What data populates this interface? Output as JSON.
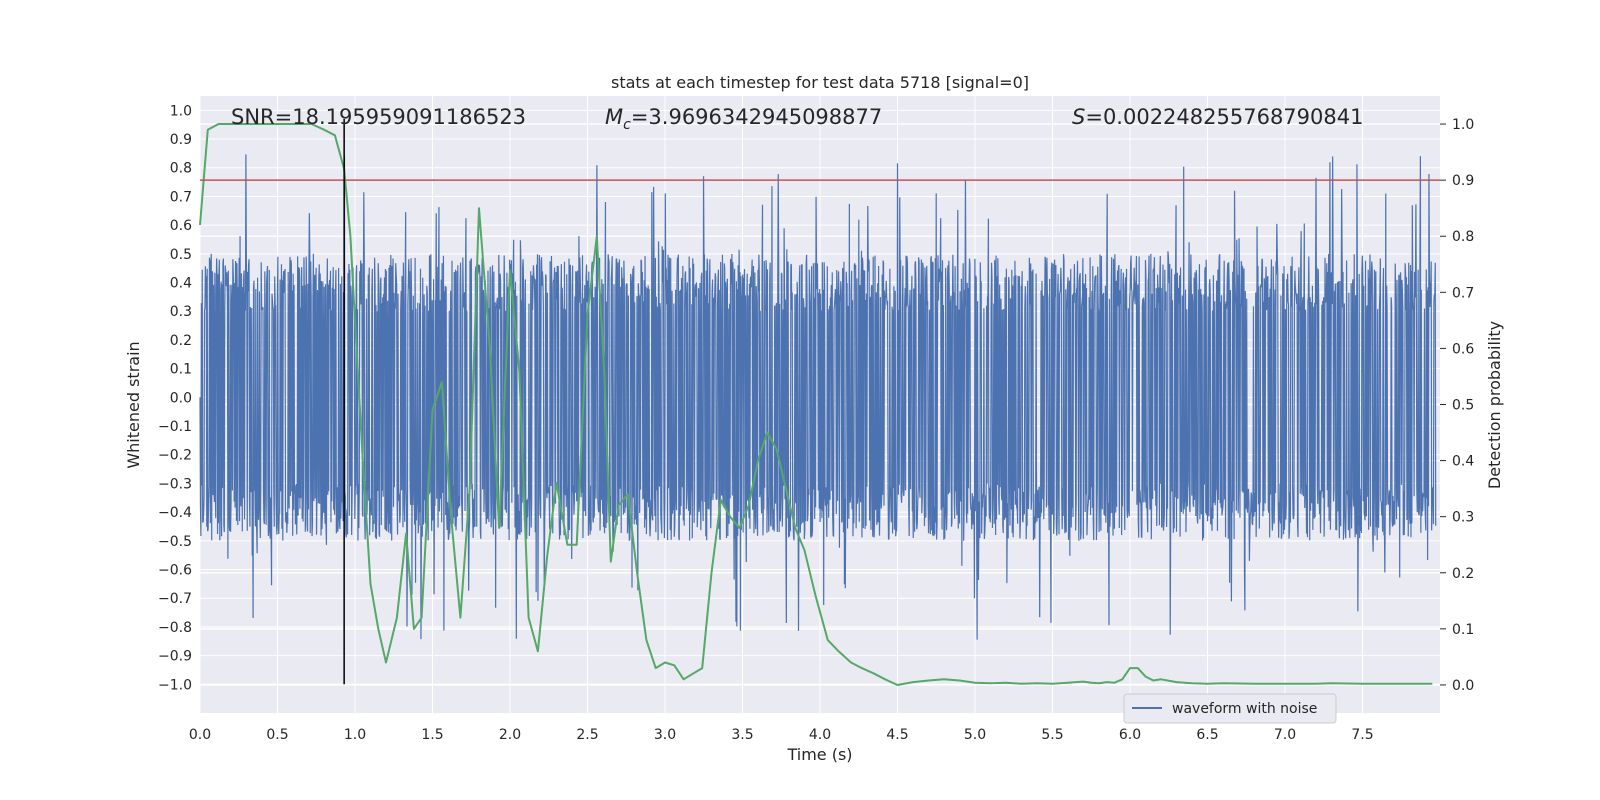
{
  "chart_data": {
    "type": "line",
    "title": "stats at each timestep for test data 5718 [signal=0]",
    "xlabel": "Time (s)",
    "ylabel_left": "Whitened strain",
    "ylabel_right": "Detection probability",
    "xlim": [
      0,
      8.0
    ],
    "ylim_left": [
      -1.1,
      1.05
    ],
    "ylim_right": [
      -0.05,
      1.05
    ],
    "x_ticks": [
      "0.0",
      "0.5",
      "1.0",
      "1.5",
      "2.0",
      "2.5",
      "3.0",
      "3.5",
      "4.0",
      "4.5",
      "5.0",
      "5.5",
      "6.0",
      "6.5",
      "7.0",
      "7.5"
    ],
    "y_left_ticks": [
      "1.0",
      "0.9",
      "0.8",
      "0.7",
      "0.6",
      "0.5",
      "0.4",
      "0.3",
      "0.2",
      "0.1",
      "0.0",
      "-0.1",
      "-0.2",
      "-0.3",
      "-0.4",
      "-0.5",
      "-0.6",
      "-0.7",
      "-0.8",
      "-0.9",
      "-1.0"
    ],
    "y_right_ticks": [
      "1.0",
      "0.9",
      "0.8",
      "0.7",
      "0.6",
      "0.5",
      "0.4",
      "0.3",
      "0.2",
      "0.1",
      "0.0"
    ],
    "grid": true,
    "legend": {
      "position": "bottom-right",
      "entries": [
        "waveform with noise"
      ]
    },
    "annotations": {
      "snr": "SNR=18.195959091186523",
      "mc_symbol": "M",
      "mc_sub": "c",
      "mc_value": "=3.9696342945098877",
      "s_symbol": "S",
      "s_value": "=0.002248255768790841"
    },
    "threshold": {
      "axis": "right",
      "value": 0.9,
      "color": "#c44e52"
    },
    "vline": {
      "x": 0.93,
      "color": "#000000"
    },
    "series": [
      {
        "name": "waveform with noise",
        "axis": "left",
        "color": "#4c72b0",
        "style": "noise",
        "band_abs": 0.3,
        "typical_abs": 0.5,
        "x_range": [
          0,
          7.97
        ]
      },
      {
        "axis": "right",
        "color": "#55a868",
        "x": [
          0.0,
          0.05,
          0.12,
          0.2,
          0.3,
          0.45,
          0.6,
          0.72,
          0.8,
          0.87,
          0.93,
          0.97,
          1.0,
          1.05,
          1.1,
          1.15,
          1.2,
          1.27,
          1.33,
          1.38,
          1.43,
          1.5,
          1.56,
          1.62,
          1.68,
          1.74,
          1.8,
          1.87,
          1.93,
          2.0,
          2.06,
          2.12,
          2.18,
          2.24,
          2.3,
          2.37,
          2.43,
          2.5,
          2.56,
          2.61,
          2.65,
          2.7,
          2.76,
          2.82,
          2.88,
          2.94,
          3.0,
          3.06,
          3.12,
          3.18,
          3.24,
          3.3,
          3.36,
          3.42,
          3.48,
          3.54,
          3.6,
          3.66,
          3.72,
          3.78,
          3.84,
          3.9,
          3.97,
          4.05,
          4.12,
          4.2,
          4.27,
          4.35,
          4.42,
          4.5,
          4.6,
          4.7,
          4.8,
          4.9,
          5.0,
          5.1,
          5.2,
          5.3,
          5.4,
          5.5,
          5.6,
          5.65,
          5.7,
          5.75,
          5.8,
          5.85,
          5.9,
          5.95,
          6.0,
          6.05,
          6.1,
          6.15,
          6.2,
          6.3,
          6.4,
          6.5,
          6.6,
          6.8,
          7.0,
          7.2,
          7.3,
          7.5,
          7.7,
          7.95
        ],
        "y": [
          0.82,
          0.99,
          1.0,
          1.0,
          1.0,
          1.0,
          1.0,
          1.0,
          0.99,
          0.98,
          0.92,
          0.8,
          0.65,
          0.4,
          0.18,
          0.1,
          0.04,
          0.12,
          0.27,
          0.1,
          0.12,
          0.49,
          0.54,
          0.3,
          0.12,
          0.35,
          0.85,
          0.6,
          0.28,
          0.74,
          0.56,
          0.12,
          0.06,
          0.23,
          0.36,
          0.25,
          0.25,
          0.66,
          0.8,
          0.55,
          0.22,
          0.32,
          0.34,
          0.2,
          0.08,
          0.03,
          0.04,
          0.035,
          0.01,
          0.02,
          0.03,
          0.2,
          0.33,
          0.3,
          0.28,
          0.32,
          0.4,
          0.45,
          0.42,
          0.35,
          0.28,
          0.24,
          0.16,
          0.08,
          0.06,
          0.04,
          0.03,
          0.02,
          0.01,
          0.0,
          0.005,
          0.008,
          0.01,
          0.008,
          0.004,
          0.003,
          0.004,
          0.002,
          0.003,
          0.002,
          0.004,
          0.005,
          0.006,
          0.004,
          0.003,
          0.005,
          0.004,
          0.01,
          0.03,
          0.03,
          0.015,
          0.008,
          0.01,
          0.005,
          0.003,
          0.002,
          0.003,
          0.002,
          0.002,
          0.002,
          0.003,
          0.002,
          0.002,
          0.002
        ]
      }
    ]
  }
}
